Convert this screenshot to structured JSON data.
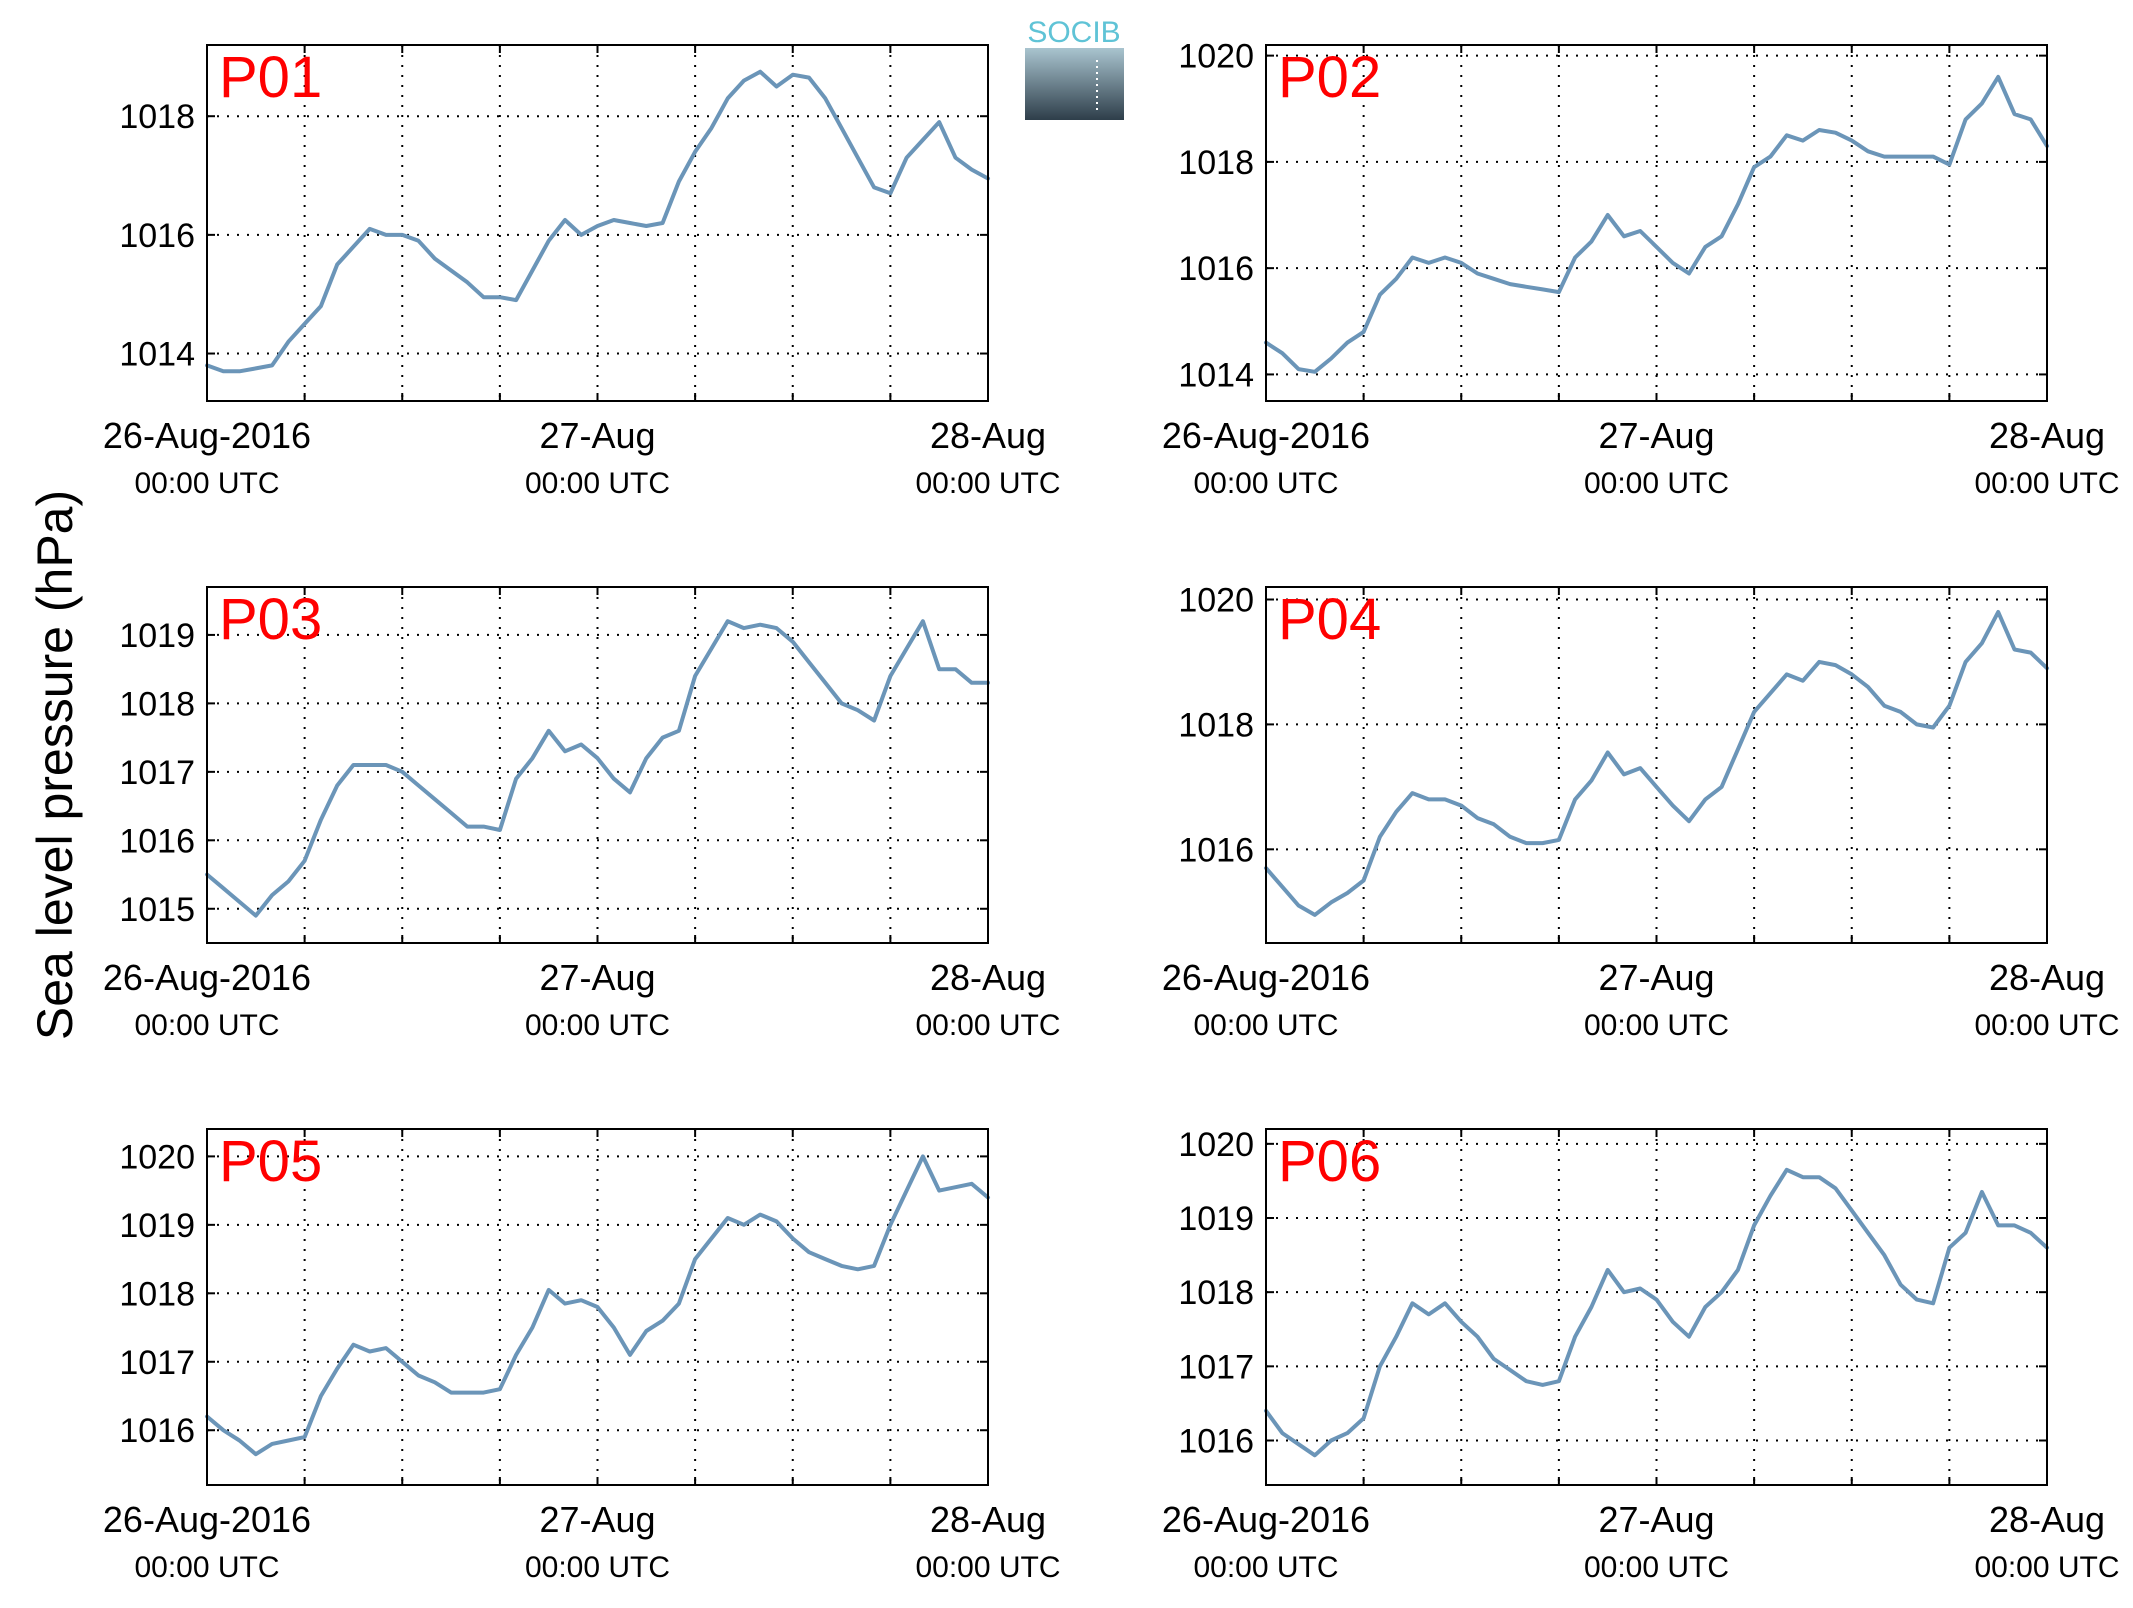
{
  "figure": {
    "ylabel": "Sea level pressure (hPa)",
    "logo_text": "SOCIB"
  },
  "colors": {
    "line": "#6b95b8",
    "panel_label": "#ff0000",
    "axis": "#000000",
    "grid": "#000000",
    "logo_top": "#5fc3d6",
    "logo_bottom": "#2e3e4a"
  },
  "chart_data": [
    {
      "type": "line",
      "panel_label": "P01",
      "x_unit": "hours since 26-Aug-2016 00:00 UTC",
      "xlim": [
        0,
        48
      ],
      "ylim": [
        1013.2,
        1019.2
      ],
      "yticks": [
        1014,
        1016,
        1018
      ],
      "x_ticks": [
        {
          "t": 0,
          "line1": "26-Aug-2016",
          "line2": "00:00 UTC"
        },
        {
          "t": 24,
          "line1": "27-Aug",
          "line2": "00:00 UTC"
        },
        {
          "t": 48,
          "line1": "28-Aug",
          "line2": "00:00 UTC"
        }
      ],
      "grid_x": [
        6,
        12,
        18,
        24,
        30,
        36,
        42
      ],
      "grid": true,
      "x": [
        0,
        1,
        2,
        3,
        4,
        5,
        6,
        7,
        8,
        9,
        10,
        11,
        12,
        13,
        14,
        15,
        16,
        17,
        18,
        19,
        20,
        21,
        22,
        23,
        24,
        25,
        26,
        27,
        28,
        29,
        30,
        31,
        32,
        33,
        34,
        35,
        36,
        37,
        38,
        39,
        40,
        41,
        42,
        43,
        44,
        45,
        46,
        47,
        48
      ],
      "y": [
        1013.8,
        1013.7,
        1013.7,
        1013.75,
        1013.8,
        1014.2,
        1014.5,
        1014.8,
        1015.5,
        1015.8,
        1016.1,
        1016.0,
        1016.0,
        1015.9,
        1015.6,
        1015.4,
        1015.2,
        1014.95,
        1014.95,
        1014.9,
        1015.4,
        1015.9,
        1016.25,
        1016.0,
        1016.15,
        1016.25,
        1016.2,
        1016.15,
        1016.2,
        1016.9,
        1017.4,
        1017.8,
        1018.3,
        1018.6,
        1018.75,
        1018.5,
        1018.7,
        1018.65,
        1018.3,
        1017.8,
        1017.3,
        1016.8,
        1016.7,
        1017.3,
        1017.6,
        1017.9,
        1017.3,
        1017.1,
        1016.95
      ]
    },
    {
      "type": "line",
      "panel_label": "P02",
      "x_unit": "hours since 26-Aug-2016 00:00 UTC",
      "xlim": [
        0,
        48
      ],
      "ylim": [
        1013.5,
        1020.2
      ],
      "yticks": [
        1014,
        1016,
        1018,
        1020
      ],
      "x_ticks": [
        {
          "t": 0,
          "line1": "26-Aug-2016",
          "line2": "00:00 UTC"
        },
        {
          "t": 24,
          "line1": "27-Aug",
          "line2": "00:00 UTC"
        },
        {
          "t": 48,
          "line1": "28-Aug",
          "line2": "00:00 UTC"
        }
      ],
      "grid_x": [
        6,
        12,
        18,
        24,
        30,
        36,
        42
      ],
      "grid": true,
      "x": [
        0,
        1,
        2,
        3,
        4,
        5,
        6,
        7,
        8,
        9,
        10,
        11,
        12,
        13,
        14,
        15,
        16,
        17,
        18,
        19,
        20,
        21,
        22,
        23,
        24,
        25,
        26,
        27,
        28,
        29,
        30,
        31,
        32,
        33,
        34,
        35,
        36,
        37,
        38,
        39,
        40,
        41,
        42,
        43,
        44,
        45,
        46,
        47,
        48
      ],
      "y": [
        1014.6,
        1014.4,
        1014.1,
        1014.05,
        1014.3,
        1014.6,
        1014.8,
        1015.5,
        1015.8,
        1016.2,
        1016.1,
        1016.2,
        1016.1,
        1015.9,
        1015.8,
        1015.7,
        1015.65,
        1015.6,
        1015.55,
        1016.2,
        1016.5,
        1017.0,
        1016.6,
        1016.7,
        1016.4,
        1016.1,
        1015.9,
        1016.4,
        1016.6,
        1017.2,
        1017.9,
        1018.1,
        1018.5,
        1018.4,
        1018.6,
        1018.55,
        1018.4,
        1018.2,
        1018.1,
        1018.1,
        1018.1,
        1018.1,
        1017.95,
        1018.8,
        1019.1,
        1019.6,
        1018.9,
        1018.8,
        1018.3
      ]
    },
    {
      "type": "line",
      "panel_label": "P03",
      "x_unit": "hours since 26-Aug-2016 00:00 UTC",
      "xlim": [
        0,
        48
      ],
      "ylim": [
        1014.5,
        1019.7
      ],
      "yticks": [
        1015,
        1016,
        1017,
        1018,
        1019
      ],
      "x_ticks": [
        {
          "t": 0,
          "line1": "26-Aug-2016",
          "line2": "00:00 UTC"
        },
        {
          "t": 24,
          "line1": "27-Aug",
          "line2": "00:00 UTC"
        },
        {
          "t": 48,
          "line1": "28-Aug",
          "line2": "00:00 UTC"
        }
      ],
      "grid_x": [
        6,
        12,
        18,
        24,
        30,
        36,
        42
      ],
      "grid": true,
      "x": [
        0,
        1,
        2,
        3,
        4,
        5,
        6,
        7,
        8,
        9,
        10,
        11,
        12,
        13,
        14,
        15,
        16,
        17,
        18,
        19,
        20,
        21,
        22,
        23,
        24,
        25,
        26,
        27,
        28,
        29,
        30,
        31,
        32,
        33,
        34,
        35,
        36,
        37,
        38,
        39,
        40,
        41,
        42,
        43,
        44,
        45,
        46,
        47,
        48
      ],
      "y": [
        1015.5,
        1015.3,
        1015.1,
        1014.9,
        1015.2,
        1015.4,
        1015.7,
        1016.3,
        1016.8,
        1017.1,
        1017.1,
        1017.1,
        1017.0,
        1016.8,
        1016.6,
        1016.4,
        1016.2,
        1016.2,
        1016.15,
        1016.9,
        1017.2,
        1017.6,
        1017.3,
        1017.4,
        1017.2,
        1016.9,
        1016.7,
        1017.2,
        1017.5,
        1017.6,
        1018.4,
        1018.8,
        1019.2,
        1019.1,
        1019.15,
        1019.1,
        1018.9,
        1018.6,
        1018.3,
        1018.0,
        1017.9,
        1017.75,
        1018.4,
        1018.8,
        1019.2,
        1018.5,
        1018.5,
        1018.3,
        1018.3
      ]
    },
    {
      "type": "line",
      "panel_label": "P04",
      "x_unit": "hours since 26-Aug-2016 00:00 UTC",
      "xlim": [
        0,
        48
      ],
      "ylim": [
        1014.5,
        1020.2
      ],
      "yticks": [
        1016,
        1018,
        1020
      ],
      "x_ticks": [
        {
          "t": 0,
          "line1": "26-Aug-2016",
          "line2": "00:00 UTC"
        },
        {
          "t": 24,
          "line1": "27-Aug",
          "line2": "00:00 UTC"
        },
        {
          "t": 48,
          "line1": "28-Aug",
          "line2": "00:00 UTC"
        }
      ],
      "grid_x": [
        6,
        12,
        18,
        24,
        30,
        36,
        42
      ],
      "grid": true,
      "x": [
        0,
        1,
        2,
        3,
        4,
        5,
        6,
        7,
        8,
        9,
        10,
        11,
        12,
        13,
        14,
        15,
        16,
        17,
        18,
        19,
        20,
        21,
        22,
        23,
        24,
        25,
        26,
        27,
        28,
        29,
        30,
        31,
        32,
        33,
        34,
        35,
        36,
        37,
        38,
        39,
        40,
        41,
        42,
        43,
        44,
        45,
        46,
        47,
        48
      ],
      "y": [
        1015.7,
        1015.4,
        1015.1,
        1014.95,
        1015.15,
        1015.3,
        1015.5,
        1016.2,
        1016.6,
        1016.9,
        1016.8,
        1016.8,
        1016.7,
        1016.5,
        1016.4,
        1016.2,
        1016.1,
        1016.1,
        1016.15,
        1016.8,
        1017.1,
        1017.55,
        1017.2,
        1017.3,
        1017.0,
        1016.7,
        1016.45,
        1016.8,
        1017.0,
        1017.6,
        1018.2,
        1018.5,
        1018.8,
        1018.7,
        1019.0,
        1018.95,
        1018.8,
        1018.6,
        1018.3,
        1018.2,
        1018.0,
        1017.95,
        1018.3,
        1019.0,
        1019.3,
        1019.8,
        1019.2,
        1019.15,
        1018.9
      ]
    },
    {
      "type": "line",
      "panel_label": "P05",
      "x_unit": "hours since 26-Aug-2016 00:00 UTC",
      "xlim": [
        0,
        48
      ],
      "ylim": [
        1015.2,
        1020.4
      ],
      "yticks": [
        1016,
        1017,
        1018,
        1019,
        1020
      ],
      "x_ticks": [
        {
          "t": 0,
          "line1": "26-Aug-2016",
          "line2": "00:00 UTC"
        },
        {
          "t": 24,
          "line1": "27-Aug",
          "line2": "00:00 UTC"
        },
        {
          "t": 48,
          "line1": "28-Aug",
          "line2": "00:00 UTC"
        }
      ],
      "grid_x": [
        6,
        12,
        18,
        24,
        30,
        36,
        42
      ],
      "grid": true,
      "x": [
        0,
        1,
        2,
        3,
        4,
        5,
        6,
        7,
        8,
        9,
        10,
        11,
        12,
        13,
        14,
        15,
        16,
        17,
        18,
        19,
        20,
        21,
        22,
        23,
        24,
        25,
        26,
        27,
        28,
        29,
        30,
        31,
        32,
        33,
        34,
        35,
        36,
        37,
        38,
        39,
        40,
        41,
        42,
        43,
        44,
        45,
        46,
        47,
        48
      ],
      "y": [
        1016.2,
        1016.0,
        1015.85,
        1015.65,
        1015.8,
        1015.85,
        1015.9,
        1016.5,
        1016.9,
        1017.25,
        1017.15,
        1017.2,
        1017.0,
        1016.8,
        1016.7,
        1016.55,
        1016.55,
        1016.55,
        1016.6,
        1017.1,
        1017.5,
        1018.05,
        1017.85,
        1017.9,
        1017.8,
        1017.5,
        1017.1,
        1017.45,
        1017.6,
        1017.85,
        1018.5,
        1018.8,
        1019.1,
        1019.0,
        1019.15,
        1019.05,
        1018.8,
        1018.6,
        1018.5,
        1018.4,
        1018.35,
        1018.4,
        1019.0,
        1019.5,
        1020.0,
        1019.5,
        1019.55,
        1019.6,
        1019.4
      ]
    },
    {
      "type": "line",
      "panel_label": "P06",
      "x_unit": "hours since 26-Aug-2016 00:00 UTC",
      "xlim": [
        0,
        48
      ],
      "ylim": [
        1015.4,
        1020.2
      ],
      "yticks": [
        1016,
        1017,
        1018,
        1019,
        1020
      ],
      "x_ticks": [
        {
          "t": 0,
          "line1": "26-Aug-2016",
          "line2": "00:00 UTC"
        },
        {
          "t": 24,
          "line1": "27-Aug",
          "line2": "00:00 UTC"
        },
        {
          "t": 48,
          "line1": "28-Aug",
          "line2": "00:00 UTC"
        }
      ],
      "grid_x": [
        6,
        12,
        18,
        24,
        30,
        36,
        42
      ],
      "grid": true,
      "x": [
        0,
        1,
        2,
        3,
        4,
        5,
        6,
        7,
        8,
        9,
        10,
        11,
        12,
        13,
        14,
        15,
        16,
        17,
        18,
        19,
        20,
        21,
        22,
        23,
        24,
        25,
        26,
        27,
        28,
        29,
        30,
        31,
        32,
        33,
        34,
        35,
        36,
        37,
        38,
        39,
        40,
        41,
        42,
        43,
        44,
        45,
        46,
        47,
        48
      ],
      "y": [
        1016.4,
        1016.1,
        1015.95,
        1015.8,
        1016.0,
        1016.1,
        1016.3,
        1017.0,
        1017.4,
        1017.85,
        1017.7,
        1017.85,
        1017.6,
        1017.4,
        1017.1,
        1016.95,
        1016.8,
        1016.75,
        1016.8,
        1017.4,
        1017.8,
        1018.3,
        1018.0,
        1018.05,
        1017.9,
        1017.6,
        1017.4,
        1017.8,
        1018.0,
        1018.3,
        1018.9,
        1019.3,
        1019.65,
        1019.55,
        1019.55,
        1019.4,
        1019.1,
        1018.8,
        1018.5,
        1018.1,
        1017.9,
        1017.85,
        1018.6,
        1018.8,
        1019.35,
        1018.9,
        1018.9,
        1018.8,
        1018.6
      ]
    }
  ]
}
